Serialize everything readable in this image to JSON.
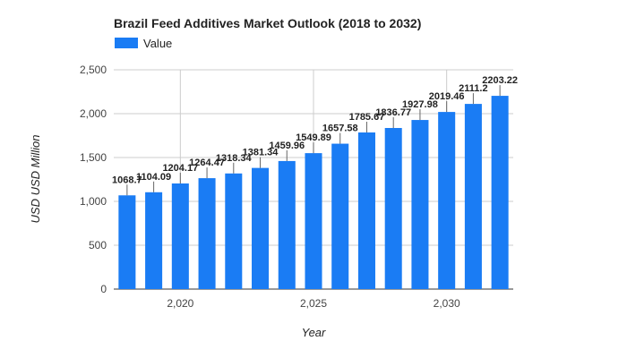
{
  "chart_data": {
    "type": "bar",
    "title": "Brazil Feed Additives Market Outlook (2018 to 2032)",
    "xlabel": "Year",
    "ylabel": "USD USD Million",
    "legend": {
      "position": "top-left",
      "entries": [
        "Value"
      ]
    },
    "series": [
      {
        "name": "Value",
        "color": "#1a7cf4",
        "x": [
          2018,
          2019,
          2020,
          2021,
          2022,
          2023,
          2024,
          2025,
          2026,
          2027,
          2028,
          2029,
          2030,
          2031,
          2032
        ],
        "values": [
          1068.7,
          1104.09,
          1204.17,
          1264.47,
          1318.34,
          1381.34,
          1459.96,
          1549.89,
          1657.58,
          1785.67,
          1836.77,
          1927.98,
          2019.46,
          2111.2,
          2203.22
        ],
        "labels": [
          "1068.7",
          "1104.09",
          "1204.17",
          "1264.47",
          "1318.34",
          "1381.34",
          "1459.96",
          "1549.89",
          "1657.58",
          "1785.67",
          "1836.77",
          "1927.98",
          "2019.46",
          "2111.2",
          "2203.22"
        ]
      }
    ],
    "xlim": [
      2017.5,
      2032.5
    ],
    "ylim": [
      0,
      2500
    ],
    "yticks": [
      0,
      500,
      1000,
      1500,
      2000,
      2500
    ],
    "ytick_labels": [
      "0",
      "500",
      "1,000",
      "1,500",
      "2,000",
      "2,500"
    ],
    "xticks": [
      2020,
      2025,
      2030
    ],
    "xtick_labels": [
      "2,020",
      "2,025",
      "2,030"
    ],
    "grid": true
  }
}
